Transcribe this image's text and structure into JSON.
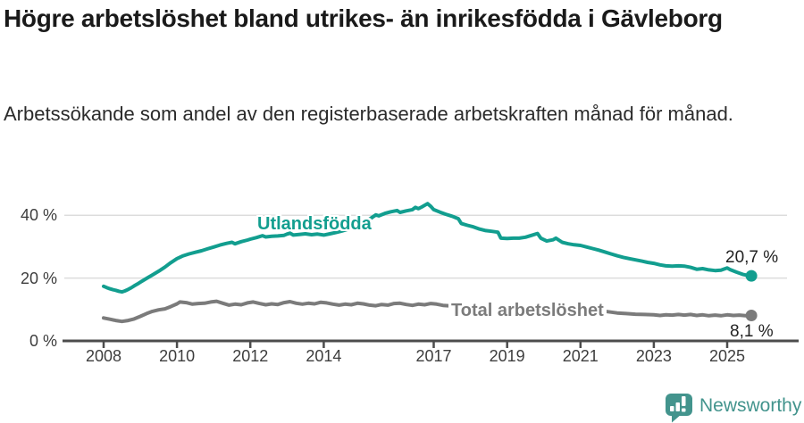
{
  "header": {
    "title": "Högre arbetslöshet bland utrikes- än inrikesfödda i Gävleborg",
    "subtitle": "Arbetssökande som andel av den registerbaserade arbetskraften månad för månad."
  },
  "footer": {
    "brand": "Newsworthy",
    "brand_color": "#43948d"
  },
  "chart_data": {
    "type": "line",
    "unit": "%",
    "grid": true,
    "x_axis": {
      "ticks": [
        {
          "v": 2008,
          "label": "2008"
        },
        {
          "v": 2010,
          "label": "2010"
        },
        {
          "v": 2012,
          "label": "2012"
        },
        {
          "v": 2014,
          "label": "2014"
        },
        {
          "v": 2017,
          "label": "2017"
        },
        {
          "v": 2019,
          "label": "2019"
        },
        {
          "v": 2021,
          "label": "2021"
        },
        {
          "v": 2023,
          "label": "2023"
        },
        {
          "v": 2025,
          "label": "2025"
        }
      ],
      "range": [
        2007.8,
        2026.1
      ]
    },
    "y_axis": {
      "ticks": [
        {
          "v": 0,
          "label": "0 %"
        },
        {
          "v": 20,
          "label": "20 %"
        },
        {
          "v": 40,
          "label": "40 %"
        }
      ],
      "range": [
        0,
        47
      ]
    },
    "series": [
      {
        "id": "utlandsfodda",
        "name": "Utlandsfödda",
        "color": "#129e8f",
        "end_label": "20,7 %",
        "end_value": 20.7,
        "points": [
          [
            2008.0,
            17.4
          ],
          [
            2008.08,
            17.0
          ],
          [
            2008.17,
            16.6
          ],
          [
            2008.25,
            16.3
          ],
          [
            2008.33,
            16.1
          ],
          [
            2008.42,
            15.8
          ],
          [
            2008.5,
            15.6
          ],
          [
            2008.58,
            15.9
          ],
          [
            2008.67,
            16.4
          ],
          [
            2008.75,
            16.9
          ],
          [
            2008.83,
            17.5
          ],
          [
            2008.92,
            18.1
          ],
          [
            2009.0,
            18.7
          ],
          [
            2009.17,
            19.9
          ],
          [
            2009.33,
            21.0
          ],
          [
            2009.5,
            22.2
          ],
          [
            2009.67,
            23.5
          ],
          [
            2009.83,
            24.9
          ],
          [
            2010.0,
            26.2
          ],
          [
            2010.17,
            27.1
          ],
          [
            2010.33,
            27.7
          ],
          [
            2010.5,
            28.2
          ],
          [
            2010.67,
            28.7
          ],
          [
            2010.83,
            29.3
          ],
          [
            2011.0,
            29.9
          ],
          [
            2011.17,
            30.5
          ],
          [
            2011.33,
            31.0
          ],
          [
            2011.5,
            31.4
          ],
          [
            2011.58,
            30.9
          ],
          [
            2011.75,
            31.6
          ],
          [
            2011.92,
            32.1
          ],
          [
            2012.0,
            32.4
          ],
          [
            2012.17,
            32.9
          ],
          [
            2012.33,
            33.5
          ],
          [
            2012.42,
            33.1
          ],
          [
            2012.58,
            33.3
          ],
          [
            2012.75,
            33.4
          ],
          [
            2012.92,
            33.6
          ],
          [
            2013.0,
            34.0
          ],
          [
            2013.08,
            34.3
          ],
          [
            2013.17,
            33.7
          ],
          [
            2013.33,
            33.9
          ],
          [
            2013.5,
            34.1
          ],
          [
            2013.67,
            33.8
          ],
          [
            2013.83,
            34.0
          ],
          [
            2014.0,
            33.7
          ],
          [
            2014.17,
            34.1
          ],
          [
            2014.33,
            34.5
          ],
          [
            2014.5,
            35.0
          ],
          [
            2014.67,
            35.6
          ],
          [
            2014.83,
            36.2
          ],
          [
            2015.0,
            36.9
          ],
          [
            2015.17,
            38.1
          ],
          [
            2015.33,
            39.4
          ],
          [
            2015.42,
            40.1
          ],
          [
            2015.5,
            39.8
          ],
          [
            2015.67,
            40.6
          ],
          [
            2015.83,
            41.1
          ],
          [
            2016.0,
            41.5
          ],
          [
            2016.08,
            40.9
          ],
          [
            2016.25,
            41.4
          ],
          [
            2016.42,
            41.8
          ],
          [
            2016.5,
            42.5
          ],
          [
            2016.58,
            42.1
          ],
          [
            2016.67,
            42.6
          ],
          [
            2016.83,
            43.7
          ],
          [
            2016.92,
            42.8
          ],
          [
            2017.0,
            41.8
          ],
          [
            2017.17,
            41.0
          ],
          [
            2017.33,
            40.3
          ],
          [
            2017.5,
            39.7
          ],
          [
            2017.67,
            38.9
          ],
          [
            2017.75,
            37.4
          ],
          [
            2017.92,
            36.8
          ],
          [
            2018.08,
            36.3
          ],
          [
            2018.25,
            35.6
          ],
          [
            2018.42,
            35.1
          ],
          [
            2018.58,
            34.9
          ],
          [
            2018.75,
            34.6
          ],
          [
            2018.83,
            32.7
          ],
          [
            2019.0,
            32.6
          ],
          [
            2019.17,
            32.7
          ],
          [
            2019.33,
            32.7
          ],
          [
            2019.5,
            33.0
          ],
          [
            2019.67,
            33.6
          ],
          [
            2019.83,
            34.2
          ],
          [
            2019.92,
            32.7
          ],
          [
            2020.08,
            31.8
          ],
          [
            2020.25,
            32.2
          ],
          [
            2020.33,
            32.7
          ],
          [
            2020.5,
            31.4
          ],
          [
            2020.67,
            30.9
          ],
          [
            2020.83,
            30.6
          ],
          [
            2021.0,
            30.4
          ],
          [
            2021.17,
            29.9
          ],
          [
            2021.33,
            29.4
          ],
          [
            2021.5,
            28.9
          ],
          [
            2021.67,
            28.3
          ],
          [
            2021.83,
            27.7
          ],
          [
            2022.0,
            27.1
          ],
          [
            2022.17,
            26.6
          ],
          [
            2022.33,
            26.2
          ],
          [
            2022.5,
            25.8
          ],
          [
            2022.67,
            25.4
          ],
          [
            2022.83,
            25.0
          ],
          [
            2023.0,
            24.7
          ],
          [
            2023.17,
            24.2
          ],
          [
            2023.33,
            23.9
          ],
          [
            2023.5,
            23.8
          ],
          [
            2023.67,
            23.9
          ],
          [
            2023.83,
            23.8
          ],
          [
            2024.0,
            23.4
          ],
          [
            2024.17,
            22.8
          ],
          [
            2024.33,
            23.0
          ],
          [
            2024.5,
            22.6
          ],
          [
            2024.67,
            22.4
          ],
          [
            2024.83,
            22.5
          ],
          [
            2025.0,
            23.2
          ],
          [
            2025.08,
            22.7
          ],
          [
            2025.25,
            21.9
          ],
          [
            2025.42,
            21.2
          ],
          [
            2025.58,
            20.8
          ],
          [
            2025.66,
            20.7
          ]
        ]
      },
      {
        "id": "total",
        "name": "Total arbetslöshet",
        "color": "#7b7b7b",
        "end_label": "8,1 %",
        "end_value": 8.1,
        "points": [
          [
            2008.0,
            7.3
          ],
          [
            2008.17,
            6.9
          ],
          [
            2008.33,
            6.5
          ],
          [
            2008.5,
            6.2
          ],
          [
            2008.67,
            6.5
          ],
          [
            2008.83,
            7.0
          ],
          [
            2009.0,
            7.8
          ],
          [
            2009.17,
            8.7
          ],
          [
            2009.33,
            9.4
          ],
          [
            2009.5,
            9.9
          ],
          [
            2009.67,
            10.2
          ],
          [
            2009.83,
            10.9
          ],
          [
            2010.0,
            11.8
          ],
          [
            2010.08,
            12.4
          ],
          [
            2010.25,
            12.2
          ],
          [
            2010.42,
            11.7
          ],
          [
            2010.58,
            11.9
          ],
          [
            2010.75,
            12.0
          ],
          [
            2010.92,
            12.4
          ],
          [
            2011.08,
            12.6
          ],
          [
            2011.25,
            12.0
          ],
          [
            2011.42,
            11.4
          ],
          [
            2011.58,
            11.7
          ],
          [
            2011.75,
            11.5
          ],
          [
            2011.92,
            12.1
          ],
          [
            2012.08,
            12.4
          ],
          [
            2012.25,
            11.9
          ],
          [
            2012.42,
            11.5
          ],
          [
            2012.58,
            11.8
          ],
          [
            2012.75,
            11.6
          ],
          [
            2012.92,
            12.2
          ],
          [
            2013.08,
            12.5
          ],
          [
            2013.25,
            12.0
          ],
          [
            2013.42,
            11.7
          ],
          [
            2013.58,
            12.0
          ],
          [
            2013.75,
            11.8
          ],
          [
            2013.92,
            12.3
          ],
          [
            2014.08,
            12.1
          ],
          [
            2014.25,
            11.7
          ],
          [
            2014.42,
            11.4
          ],
          [
            2014.58,
            11.7
          ],
          [
            2014.75,
            11.5
          ],
          [
            2014.92,
            12.0
          ],
          [
            2015.08,
            11.8
          ],
          [
            2015.25,
            11.4
          ],
          [
            2015.42,
            11.2
          ],
          [
            2015.58,
            11.6
          ],
          [
            2015.75,
            11.4
          ],
          [
            2015.92,
            11.9
          ],
          [
            2016.08,
            12.0
          ],
          [
            2016.25,
            11.6
          ],
          [
            2016.42,
            11.3
          ],
          [
            2016.58,
            11.7
          ],
          [
            2016.75,
            11.5
          ],
          [
            2016.92,
            11.9
          ],
          [
            2017.08,
            11.7
          ],
          [
            2017.25,
            11.3
          ],
          [
            2017.5,
            11.1
          ],
          [
            2017.75,
            10.9
          ],
          [
            2018.0,
            10.7
          ],
          [
            2018.25,
            10.3
          ],
          [
            2018.5,
            10.1
          ],
          [
            2018.75,
            10.0
          ],
          [
            2019.0,
            9.9
          ],
          [
            2019.25,
            9.6
          ],
          [
            2019.5,
            9.7
          ],
          [
            2019.75,
            9.8
          ],
          [
            2020.0,
            10.0
          ],
          [
            2020.25,
            11.0
          ],
          [
            2020.42,
            11.3
          ],
          [
            2020.58,
            11.1
          ],
          [
            2020.75,
            10.9
          ],
          [
            2021.0,
            10.6
          ],
          [
            2021.25,
            10.1
          ],
          [
            2021.5,
            9.7
          ],
          [
            2021.75,
            9.3
          ],
          [
            2022.0,
            8.9
          ],
          [
            2022.25,
            8.7
          ],
          [
            2022.5,
            8.5
          ],
          [
            2022.75,
            8.4
          ],
          [
            2023.0,
            8.3
          ],
          [
            2023.17,
            8.1
          ],
          [
            2023.33,
            8.3
          ],
          [
            2023.5,
            8.2
          ],
          [
            2023.67,
            8.4
          ],
          [
            2023.83,
            8.2
          ],
          [
            2024.0,
            8.4
          ],
          [
            2024.17,
            8.1
          ],
          [
            2024.33,
            8.3
          ],
          [
            2024.5,
            8.0
          ],
          [
            2024.67,
            8.2
          ],
          [
            2024.83,
            8.0
          ],
          [
            2025.0,
            8.3
          ],
          [
            2025.17,
            8.1
          ],
          [
            2025.33,
            8.2
          ],
          [
            2025.5,
            8.0
          ],
          [
            2025.66,
            8.1
          ]
        ]
      }
    ]
  }
}
